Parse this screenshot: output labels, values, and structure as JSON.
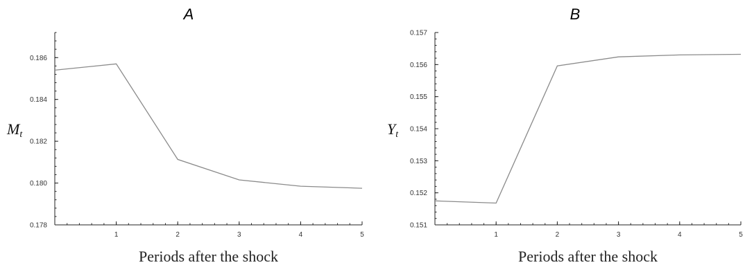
{
  "chart_data": [
    {
      "type": "line",
      "title": "A",
      "xlabel": "Periods after the shock",
      "ylabel": "M",
      "ylabel_sub": "t",
      "x": [
        0,
        1,
        2,
        3,
        4,
        5
      ],
      "values": [
        0.1854,
        0.1857,
        0.18113,
        0.18015,
        0.17985,
        0.17975
      ],
      "xlim": [
        0,
        5
      ],
      "ylim": [
        0.178,
        0.1872
      ],
      "xticks": [
        "1",
        "2",
        "3",
        "4",
        "5"
      ],
      "yticks": [
        "0.178",
        "0.180",
        "0.182",
        "0.184",
        "0.186"
      ],
      "grid": false,
      "line_color": "#8a8a8a"
    },
    {
      "type": "line",
      "title": "B",
      "xlabel": "Periods after the shock",
      "ylabel": "Y",
      "ylabel_sub": "t",
      "x": [
        0,
        1,
        2,
        3,
        4,
        5
      ],
      "values": [
        0.15175,
        0.15168,
        0.15596,
        0.15624,
        0.1563,
        0.15632
      ],
      "xlim": [
        0,
        5
      ],
      "ylim": [
        0.151,
        0.157
      ],
      "xticks": [
        "1",
        "2",
        "3",
        "4",
        "5"
      ],
      "yticks": [
        "0.151",
        "0.152",
        "0.153",
        "0.154",
        "0.155",
        "0.156",
        "0.157"
      ],
      "grid": false,
      "line_color": "#8a8a8a"
    }
  ]
}
